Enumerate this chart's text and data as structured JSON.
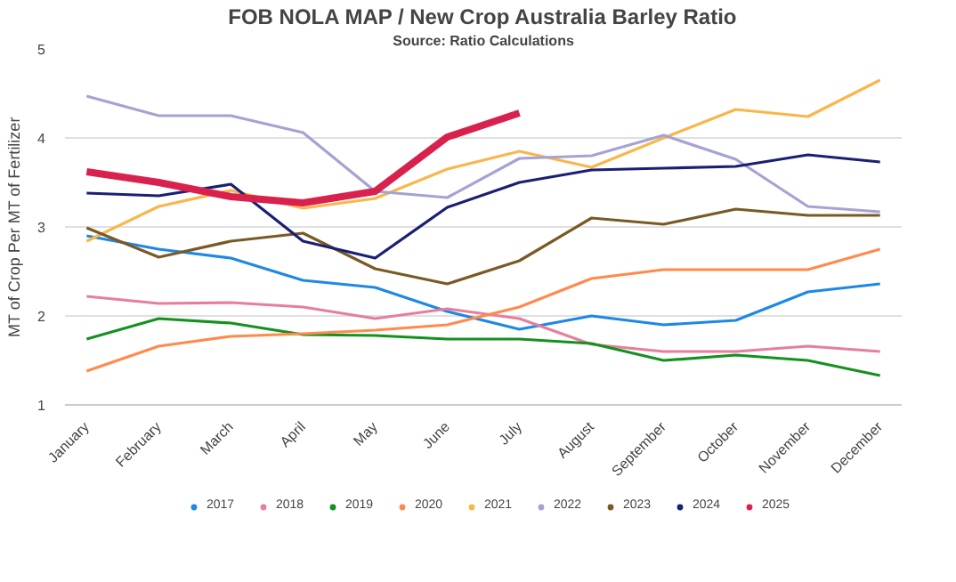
{
  "chart_data": {
    "type": "line",
    "title": "FOB NOLA MAP / New Crop Australia Barley Ratio",
    "subtitle": "Source: Ratio Calculations",
    "ylabel": "MT of Crop Per MT of Fertilizer",
    "categories": [
      "January",
      "February",
      "March",
      "April",
      "May",
      "June",
      "July",
      "August",
      "September",
      "October",
      "November",
      "December"
    ],
    "ylim": [
      1,
      5
    ],
    "yticks": [
      1,
      2,
      3,
      4,
      5
    ],
    "grid": "y",
    "legend": "bottom",
    "marker": "none",
    "line_style": "solid",
    "series": [
      {
        "name": "2017",
        "color": "#1e88e5",
        "values": [
          2.9,
          2.75,
          2.65,
          2.4,
          2.32,
          2.05,
          1.85,
          2.0,
          1.9,
          1.95,
          2.27,
          2.36
        ]
      },
      {
        "name": "2018",
        "color": "#e57f9a",
        "values": [
          2.22,
          2.14,
          2.15,
          2.1,
          1.97,
          2.08,
          1.97,
          1.68,
          1.6,
          1.6,
          1.66,
          1.6
        ]
      },
      {
        "name": "2019",
        "color": "#14911e",
        "values": [
          1.74,
          1.97,
          1.92,
          1.79,
          1.78,
          1.74,
          1.74,
          1.69,
          1.5,
          1.56,
          1.5,
          1.33
        ]
      },
      {
        "name": "2020",
        "color": "#ff8a4c",
        "values": [
          1.38,
          1.66,
          1.77,
          1.8,
          1.84,
          1.9,
          2.1,
          2.42,
          2.52,
          2.52,
          2.52,
          2.75
        ]
      },
      {
        "name": "2021",
        "color": "#f9b64a",
        "values": [
          2.84,
          3.23,
          3.41,
          3.21,
          3.32,
          3.65,
          3.85,
          3.67,
          4.0,
          4.32,
          4.24,
          4.65
        ]
      },
      {
        "name": "2022",
        "color": "#a3a3d4",
        "values": [
          4.47,
          4.25,
          4.25,
          4.06,
          3.4,
          3.33,
          3.77,
          3.8,
          4.03,
          3.76,
          3.23,
          3.17
        ]
      },
      {
        "name": "2023",
        "color": "#7a5a24",
        "values": [
          2.99,
          2.66,
          2.84,
          2.93,
          2.53,
          2.36,
          2.62,
          3.1,
          3.03,
          3.2,
          3.13,
          3.13
        ]
      },
      {
        "name": "2024",
        "color": "#1a1f73",
        "values": [
          3.38,
          3.35,
          3.48,
          2.84,
          2.65,
          3.22,
          3.5,
          3.64,
          3.66,
          3.68,
          3.81,
          3.73
        ]
      },
      {
        "name": "2025",
        "color": "#d9214e",
        "values": [
          3.62,
          3.5,
          3.34,
          3.27,
          3.4,
          4.01,
          4.28,
          null,
          null,
          null,
          null,
          null
        ]
      }
    ]
  }
}
